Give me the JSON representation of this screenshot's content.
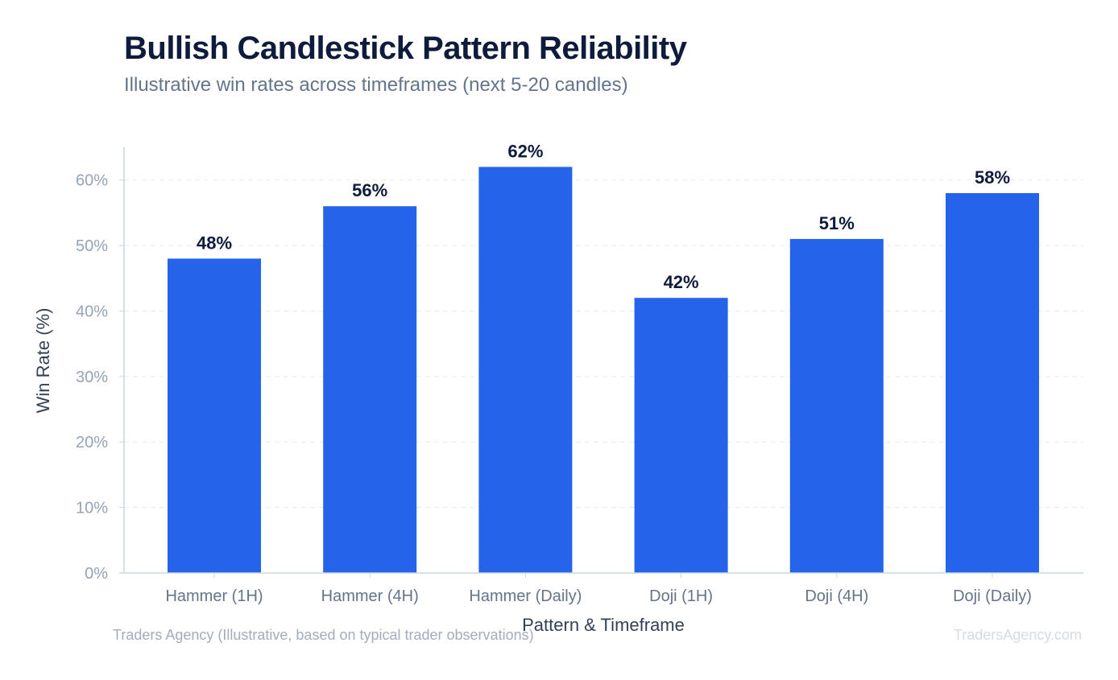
{
  "chart_data": {
    "type": "bar",
    "title": "Bullish Candlestick Pattern Reliability",
    "subtitle": "Illustrative win rates across timeframes (next 5-20 candles)",
    "xlabel": "Pattern & Timeframe",
    "ylabel": "Win Rate (%)",
    "categories": [
      "Hammer (1H)",
      "Hammer (4H)",
      "Hammer (Daily)",
      "Doji (1H)",
      "Doji (4H)",
      "Doji (Daily)"
    ],
    "values": [
      48,
      56,
      62,
      42,
      51,
      58
    ],
    "value_labels": [
      "48%",
      "56%",
      "62%",
      "42%",
      "51%",
      "58%"
    ],
    "ylim": [
      0,
      65
    ],
    "yticks": [
      0,
      10,
      20,
      30,
      40,
      50,
      60
    ],
    "ytick_labels": [
      "0%",
      "10%",
      "20%",
      "30%",
      "40%",
      "50%",
      "60%"
    ],
    "grid": true,
    "bar_color": "#2563eb"
  },
  "footer": {
    "source": "Traders Agency (Illustrative, based on typical trader observations)",
    "brand": "TradersAgency.com"
  }
}
